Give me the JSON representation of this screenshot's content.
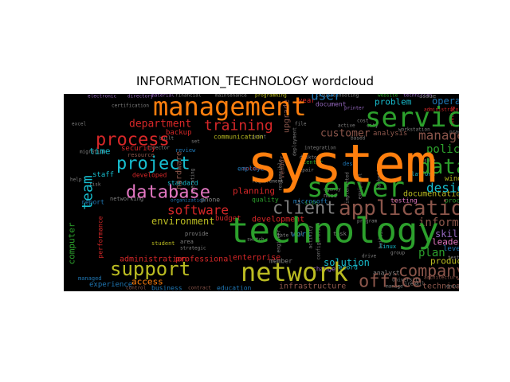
{
  "chart_data": {
    "type": "wordcloud",
    "title": "INFORMATION_TECHNOLOGY wordcloud",
    "background": "#000000",
    "palette": {
      "orange": "#ff7f0e",
      "green": "#2ca02c",
      "red": "#d62728",
      "blue": "#1f77b4",
      "cyan": "#17becf",
      "pink": "#e377c2",
      "olive": "#bcbd22",
      "brown": "#8c564b",
      "purple": "#9467bd",
      "gray": "#7f7f7f"
    },
    "words": [
      {
        "text": "system",
        "color": "#ff7f0e"
      },
      {
        "text": "technology",
        "color": "#2ca02c"
      },
      {
        "text": "management",
        "color": "#ff7f0e"
      },
      {
        "text": "service",
        "color": "#2ca02c"
      },
      {
        "text": "network",
        "color": "#bcbd22"
      },
      {
        "text": "server",
        "color": "#2ca02c"
      },
      {
        "text": "application",
        "color": "#8c564b"
      },
      {
        "text": "database",
        "color": "#e377c2"
      },
      {
        "text": "project",
        "color": "#17becf"
      },
      {
        "text": "process",
        "color": "#d62728"
      },
      {
        "text": "support",
        "color": "#bcbd22"
      },
      {
        "text": "office",
        "color": "#8c564b"
      },
      {
        "text": "company",
        "color": "#8c564b"
      },
      {
        "text": "data",
        "color": "#2ca02c"
      },
      {
        "text": "client",
        "color": "#7f7f7f"
      },
      {
        "text": "software",
        "color": "#d62728"
      },
      {
        "text": "training",
        "color": "#d62728"
      },
      {
        "text": "user",
        "color": "#1f77b4"
      },
      {
        "text": "design",
        "color": "#17becf"
      },
      {
        "text": "manager",
        "color": "#8c564b"
      },
      {
        "text": "team",
        "color": "#17becf"
      },
      {
        "text": "department",
        "color": "#d62728"
      },
      {
        "text": "customer",
        "color": "#8c564b"
      },
      {
        "text": "policy",
        "color": "#2ca02c"
      },
      {
        "text": "information",
        "color": "#8c564b"
      },
      {
        "text": "environment",
        "color": "#bcbd22"
      },
      {
        "text": "plan",
        "color": "#2ca02c"
      },
      {
        "text": "problem",
        "color": "#17becf"
      },
      {
        "text": "operation",
        "color": "#1f77b4"
      },
      {
        "text": "skill",
        "color": "#9467bd"
      },
      {
        "text": "planning",
        "color": "#d62728"
      },
      {
        "text": "hardware",
        "color": "#8c564b"
      },
      {
        "text": "work",
        "color": "#1f77b4"
      },
      {
        "text": "computer",
        "color": "#2ca02c"
      },
      {
        "text": "access",
        "color": "#ff7f0e"
      },
      {
        "text": "solution",
        "color": "#17becf"
      },
      {
        "text": "administration",
        "color": "#d62728"
      },
      {
        "text": "professional",
        "color": "#d62728"
      },
      {
        "text": "enterprise",
        "color": "#d62728"
      },
      {
        "text": "leadership",
        "color": "#e377c2"
      },
      {
        "text": "product",
        "color": "#bcbd22"
      },
      {
        "text": "time",
        "color": "#17becf"
      },
      {
        "text": "documentation",
        "color": "#bcbd22"
      },
      {
        "text": "development",
        "color": "#d62728"
      },
      {
        "text": "infrastructure",
        "color": "#8c564b"
      },
      {
        "text": "technical",
        "color": "#8c564b"
      },
      {
        "text": "security",
        "color": "#d62728"
      },
      {
        "text": "communication",
        "color": "#bcbd22"
      },
      {
        "text": "analysis",
        "color": "#8c564b"
      },
      {
        "text": "experience",
        "color": "#1f77b4"
      },
      {
        "text": "business",
        "color": "#1f77b4"
      },
      {
        "text": "education",
        "color": "#1f77b4"
      },
      {
        "text": "staff",
        "color": "#17becf"
      },
      {
        "text": "level",
        "color": "#1f77b4"
      },
      {
        "text": "window",
        "color": "#bcbd22"
      },
      {
        "text": "procedure",
        "color": "#2ca02c"
      },
      {
        "text": "budget",
        "color": "#d62728"
      },
      {
        "text": "upgrade",
        "color": "#8c564b"
      },
      {
        "text": "backup",
        "color": "#d62728"
      },
      {
        "text": "developed",
        "color": "#d62728"
      },
      {
        "text": "standard",
        "color": "#17becf"
      },
      {
        "text": "employee",
        "color": "#1f77b4"
      },
      {
        "text": "quality",
        "color": "#2ca02c"
      },
      {
        "text": "member",
        "color": "#7f7f7f"
      },
      {
        "text": "change",
        "color": "#9467bd"
      },
      {
        "text": "record",
        "color": "#17becf"
      },
      {
        "text": "analyst",
        "color": "#7f7f7f"
      },
      {
        "text": "testing",
        "color": "#e377c2"
      },
      {
        "text": "phone",
        "color": "#7f7f7f"
      },
      {
        "text": "report",
        "color": "#1f77b4"
      },
      {
        "text": "networking",
        "color": "#7f7f7f"
      },
      {
        "text": "microsoft",
        "color": "#1f77b4"
      },
      {
        "text": "document",
        "color": "#9467bd"
      },
      {
        "text": "year",
        "color": "#d62728"
      },
      {
        "text": "issue",
        "color": "#7f7f7f"
      },
      {
        "text": "tool",
        "color": "#7f7f7f"
      },
      {
        "text": "provide",
        "color": "#7f7f7f"
      },
      {
        "text": "student",
        "color": "#bcbd22"
      },
      {
        "text": "performance",
        "color": "#d62728"
      },
      {
        "text": "managed",
        "color": "#1f77b4"
      },
      {
        "text": "area",
        "color": "#7f7f7f"
      },
      {
        "text": "vendor",
        "color": "#8c564b"
      },
      {
        "text": "account",
        "color": "#d62728"
      },
      {
        "text": "site",
        "color": "#2ca02c"
      },
      {
        "text": "center",
        "color": "#2ca02c"
      },
      {
        "text": "desk",
        "color": "#1f77b4"
      },
      {
        "text": "need",
        "color": "#7f7f7f"
      },
      {
        "text": "task",
        "color": "#7f7f7f"
      },
      {
        "text": "linux",
        "color": "#17becf"
      },
      {
        "text": "platform",
        "color": "#17becf"
      },
      {
        "text": "resource",
        "color": "#8c564b"
      },
      {
        "text": "review",
        "color": "#1f77b4"
      },
      {
        "text": "maintenance",
        "color": "#7f7f7f"
      },
      {
        "text": "financial",
        "color": "#7f7f7f"
      },
      {
        "text": "material",
        "color": "#9467bd"
      },
      {
        "text": "electronic",
        "color": "#9467bd"
      },
      {
        "text": "directory",
        "color": "#9467bd"
      },
      {
        "text": "certification",
        "color": "#7f7f7f"
      },
      {
        "text": "troubleshooting",
        "color": "#7f7f7f"
      },
      {
        "text": "programming",
        "color": "#bcbd22"
      },
      {
        "text": "technician",
        "color": "#9467bd"
      },
      {
        "text": "website",
        "color": "#2ca02c"
      },
      {
        "text": "administrator",
        "color": "#d62728"
      },
      {
        "text": "printer",
        "color": "#9467bd"
      },
      {
        "text": "meeting",
        "color": "#d62728"
      },
      {
        "text": "help",
        "color": "#7f7f7f"
      },
      {
        "text": "agency",
        "color": "#7f7f7f"
      },
      {
        "text": "repair",
        "color": "#7f7f7f"
      },
      {
        "text": "requirement",
        "color": "#7f7f7f"
      },
      {
        "text": "university",
        "color": "#7f7f7f"
      },
      {
        "text": "architecture",
        "color": "#8c564b"
      },
      {
        "text": "manage",
        "color": "#7f7f7f"
      },
      {
        "text": "contract",
        "color": "#8c564b"
      },
      {
        "text": "control",
        "color": "#8c564b"
      },
      {
        "text": "organization",
        "color": "#1f77b4"
      },
      {
        "text": "strategic",
        "color": "#7f7f7f"
      },
      {
        "text": "integration",
        "color": "#7f7f7f"
      },
      {
        "text": "cost",
        "color": "#7f7f7f"
      },
      {
        "text": "city",
        "color": "#7f7f7f"
      },
      {
        "text": "file",
        "color": "#7f7f7f"
      },
      {
        "text": "based",
        "color": "#7f7f7f"
      },
      {
        "text": "switch",
        "color": "#7f7f7f"
      },
      {
        "text": "point",
        "color": "#7f7f7f"
      },
      {
        "text": "firewall",
        "color": "#7f7f7f"
      },
      {
        "text": "migration",
        "color": "#7f7f7f"
      },
      {
        "text": "sale",
        "color": "#7f7f7f"
      },
      {
        "text": "test",
        "color": "#7f7f7f"
      },
      {
        "text": "risk",
        "color": "#7f7f7f"
      },
      {
        "text": "desktop",
        "color": "#7f7f7f"
      },
      {
        "text": "deployment",
        "color": "#7f7f7f"
      },
      {
        "text": "director",
        "color": "#7f7f7f"
      },
      {
        "text": "excel",
        "color": "#7f7f7f"
      },
      {
        "text": "built",
        "color": "#7f7f7f"
      },
      {
        "text": "active",
        "color": "#7f7f7f"
      },
      {
        "text": "responsible",
        "color": "#7f7f7f"
      },
      {
        "text": "equipment",
        "color": "#7f7f7f"
      },
      {
        "text": "implemented",
        "color": "#7f7f7f"
      },
      {
        "text": "configuration",
        "color": "#7f7f7f"
      },
      {
        "text": "activity",
        "color": "#7f7f7f"
      },
      {
        "text": "engineer",
        "color": "#7f7f7f"
      },
      {
        "text": "program",
        "color": "#7f7f7f"
      },
      {
        "text": "building",
        "color": "#7f7f7f"
      },
      {
        "text": "marketing",
        "color": "#7f7f7f"
      },
      {
        "text": "practice",
        "color": "#7f7f7f"
      },
      {
        "text": "ensure",
        "color": "#7f7f7f"
      },
      {
        "text": "operating",
        "color": "#7f7f7f"
      },
      {
        "text": "group",
        "color": "#7f7f7f"
      },
      {
        "text": "drive",
        "color": "#7f7f7f"
      },
      {
        "text": "set",
        "color": "#7f7f7f"
      },
      {
        "text": "state",
        "color": "#7f7f7f"
      },
      {
        "text": "workstation",
        "color": "#7f7f7f"
      }
    ]
  }
}
